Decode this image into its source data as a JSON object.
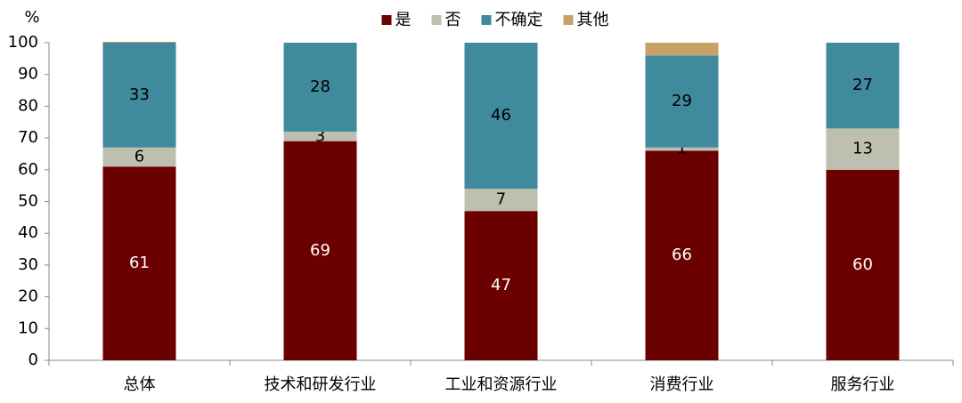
{
  "chart_data": {
    "type": "stacked-bar",
    "ylabel": "%",
    "categories": [
      "总体",
      "技术和研发行业",
      "工业和资源行业",
      "消费行业",
      "服务行业"
    ],
    "series": [
      {
        "name": "是",
        "color": "#6b0000",
        "label_color": "#ffffff",
        "labels": true,
        "values": [
          61,
          69,
          47,
          66,
          60
        ]
      },
      {
        "name": "否",
        "color": "#bfbfb0",
        "label_color": "#000000",
        "labels": true,
        "values": [
          6,
          3,
          7,
          1,
          13
        ]
      },
      {
        "name": "不确定",
        "color": "#3f8a9c",
        "label_color": "#000000",
        "labels": true,
        "values": [
          33,
          28,
          46,
          29,
          27
        ]
      },
      {
        "name": "其他",
        "color": "#c9a166",
        "label_color": "#000000",
        "labels": false,
        "values": [
          0.3,
          0,
          0,
          4,
          0
        ]
      }
    ],
    "ylim": [
      0,
      100
    ],
    "yticks": [
      0,
      10,
      20,
      30,
      40,
      50,
      60,
      70,
      80,
      90,
      100
    ],
    "legend": "top",
    "grid": false
  }
}
